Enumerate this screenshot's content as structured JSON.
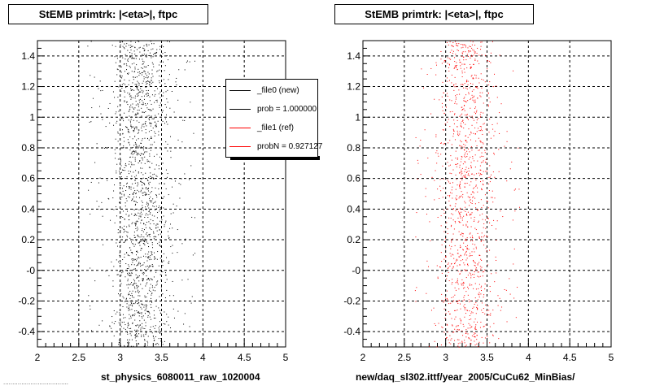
{
  "footer_text": "....................................",
  "chart_data": [
    {
      "type": "scatter",
      "title": "StEMB primtrk: |<eta>|, ftpc",
      "xlabel": "st_physics_6080011_raw_1020004",
      "ylabel": "",
      "xlim": [
        2,
        5
      ],
      "ylim": [
        -0.5,
        1.5
      ],
      "x_ticks": [
        "2",
        "2.5",
        "3",
        "3.5",
        "4",
        "4.5",
        "5"
      ],
      "y_ticks": [
        "-0.4",
        "-0.2",
        "-0",
        "0.2",
        "0.4",
        "0.6",
        "0.8",
        "1",
        "1.2",
        "1.4"
      ],
      "grid": true,
      "marker_color": "#000000",
      "band": {
        "x_center": 3.25,
        "x_core_halfwidth": 0.2,
        "x_tail_min": 2.6,
        "x_tail_max": 3.9,
        "points": 1600
      },
      "legend": {
        "placement": "top-right",
        "entries": [
          {
            "label": "_file0 (new)",
            "color": "#000000"
          },
          {
            "label": "prob = 1.000000",
            "color": "#000000"
          },
          {
            "label": "_file1 (ref)",
            "color": "#ff0000"
          },
          {
            "label": "probN = 0.927127",
            "color": "#ff0000"
          }
        ]
      }
    },
    {
      "type": "scatter",
      "title": "StEMB primtrk: |<eta>|, ftpc",
      "xlabel": "new/daq_sl302.ittf/year_2005/CuCu62_MinBias/",
      "ylabel": "",
      "xlim": [
        2,
        5
      ],
      "ylim": [
        -0.5,
        1.5
      ],
      "x_ticks": [
        "2",
        "2.5",
        "3",
        "3.5",
        "4",
        "4.5",
        "5"
      ],
      "y_ticks": [
        "-0.4",
        "-0.2",
        "-0",
        "0.2",
        "0.4",
        "0.6",
        "0.8",
        "1",
        "1.2",
        "1.4"
      ],
      "grid": true,
      "marker_color": "#ff0000",
      "band": {
        "x_center": 3.25,
        "x_core_halfwidth": 0.2,
        "x_tail_min": 2.6,
        "x_tail_max": 3.9,
        "points": 1200
      }
    }
  ]
}
